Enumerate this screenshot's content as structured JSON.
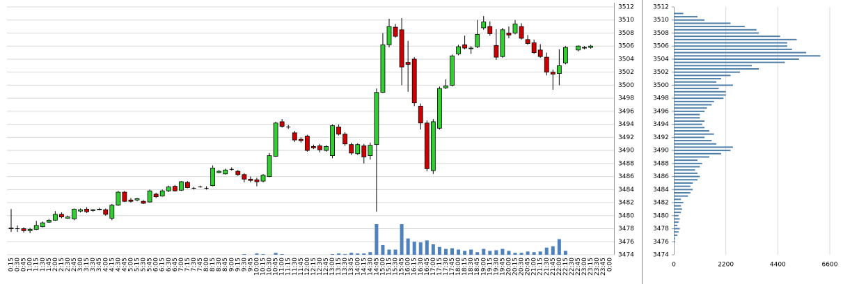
{
  "chart_data": [
    {
      "type": "candlestick",
      "categories": [
        "0:15",
        "0:30",
        "0:45",
        "1:00",
        "1:15",
        "1:30",
        "1:45",
        "2:00",
        "2:15",
        "2:30",
        "2:45",
        "3:00",
        "3:15",
        "3:30",
        "3:45",
        "4:00",
        "4:15",
        "4:30",
        "4:45",
        "5:00",
        "5:15",
        "5:30",
        "5:45",
        "6:00",
        "6:15",
        "6:30",
        "6:45",
        "7:00",
        "7:15",
        "7:30",
        "7:45",
        "8:00",
        "8:15",
        "8:30",
        "8:45",
        "9:00",
        "9:15",
        "9:30",
        "9:45",
        "10:00",
        "10:15",
        "10:30",
        "10:45",
        "11:00",
        "11:15",
        "11:30",
        "11:45",
        "12:00",
        "12:15",
        "12:30",
        "12:45",
        "13:00",
        "13:15",
        "13:30",
        "13:45",
        "14:00",
        "14:15",
        "14:30",
        "14:45",
        "15:00",
        "15:15",
        "15:30",
        "15:45",
        "16:00",
        "16:15",
        "16:30",
        "16:45",
        "17:00",
        "17:15",
        "17:30",
        "17:45",
        "18:00",
        "18:15",
        "18:30",
        "18:45",
        "19:00",
        "19:15",
        "19:30",
        "19:45",
        "20:00",
        "20:15",
        "20:30",
        "20:45",
        "21:00",
        "21:15",
        "21:30",
        "21:45",
        "22:00",
        "22:15",
        "22:30",
        "22:45",
        "23:00",
        "23:15",
        "23:30",
        "23:45",
        "0:00"
      ],
      "open": [
        3478,
        3478,
        3478,
        3477.7,
        3477.9,
        3478.3,
        3479,
        3479.3,
        3480.2,
        3479.6,
        3479.5,
        3480.7,
        3481,
        3480.8,
        3480.9,
        3480.9,
        3479.6,
        3481.6,
        3483.6,
        3482.4,
        3482.4,
        3482.2,
        3482.1,
        3483.3,
        3483,
        3483.8,
        3484.5,
        3483.9,
        3485.1,
        3484.2,
        3484.4,
        3484.2,
        3484.6,
        3486.6,
        3486.4,
        3487.1,
        3486.8,
        3486.3,
        3485.6,
        3485.5,
        3485.3,
        3486,
        3489.1,
        3494.4,
        3493.6,
        3492.7,
        3491.7,
        3492.2,
        3490.6,
        3490.7,
        3490,
        3489.2,
        3493.6,
        3492.5,
        3490.9,
        3489.5,
        3490.7,
        3489.2,
        3490.9,
        3498.9,
        3506.2,
        3508.9,
        3508.5,
        3503.5,
        3504,
        3496.8,
        3494.2,
        3486.9,
        3493.4,
        3499.6,
        3500,
        3504.8,
        3506.2,
        3505.6,
        3505.9,
        3508.8,
        3509,
        3506.1,
        3504.4,
        3508,
        3508,
        3509,
        3507,
        3506.5,
        3505.4,
        3504.3,
        3502,
        3501.8,
        3503.4,
        null,
        3505.4,
        3505.7,
        3505.8,
        null,
        null,
        null
      ],
      "high": [
        3481,
        3478.5,
        3478.2,
        3478.1,
        3479.2,
        3479.1,
        3479.5,
        3480.7,
        3480.5,
        3480,
        3481.1,
        3481.1,
        3481.3,
        3481,
        3481.2,
        3481.1,
        3481.8,
        3483.8,
        3483.8,
        3482.7,
        3482.7,
        3482.4,
        3484,
        3483.5,
        3484,
        3484.6,
        3484.7,
        3485.3,
        3485.3,
        3484.4,
        3484.6,
        3484.5,
        3487.7,
        3487,
        3487.2,
        3487.4,
        3487,
        3486.5,
        3486,
        3485.8,
        3486.4,
        3489.6,
        3494.4,
        3494.8,
        3493.9,
        3493,
        3492,
        3492.4,
        3490.9,
        3491,
        3490.8,
        3494,
        3494,
        3492.8,
        3491.2,
        3491.1,
        3491,
        3491.2,
        3499.5,
        3508,
        3510.2,
        3509.4,
        3510.3,
        3506.8,
        3504.3,
        3497.2,
        3494.6,
        3494.8,
        3499.8,
        3500.9,
        3504.7,
        3506.2,
        3507.6,
        3506,
        3510,
        3510.6,
        3509.8,
        3508.6,
        3508.8,
        3509,
        3510,
        3509.5,
        3507.7,
        3507,
        3506.3,
        3505,
        3502.4,
        3505.5,
        3506,
        null,
        3506.1,
        3506,
        3506.2,
        null,
        null,
        null
      ],
      "low": [
        3477.5,
        3477.5,
        3477.4,
        3477.3,
        3477.8,
        3478.2,
        3478.9,
        3479.2,
        3479.6,
        3479.5,
        3479.3,
        3480.5,
        3480.4,
        3480.6,
        3480.8,
        3480,
        3479.3,
        3481.5,
        3482.1,
        3482,
        3482.2,
        3481.8,
        3482,
        3482.7,
        3482.9,
        3483.6,
        3483.7,
        3483.8,
        3484.2,
        3484,
        3484.3,
        3484,
        3484.5,
        3486.5,
        3486.3,
        3486.9,
        3486.1,
        3485.1,
        3485.1,
        3484.5,
        3485.1,
        3485.9,
        3489,
        3493.5,
        3493.3,
        3491.3,
        3491.2,
        3489.8,
        3490.2,
        3489.7,
        3489.8,
        3488.8,
        3492.3,
        3490.7,
        3489.3,
        3489.3,
        3488,
        3488.6,
        3480.6,
        3498.8,
        3505.8,
        3507.3,
        3500,
        3499,
        3496.8,
        3493.2,
        3486.8,
        3486.4,
        3493.2,
        3499.4,
        3499.8,
        3504.6,
        3505.5,
        3504.8,
        3505.7,
        3508.5,
        3507.6,
        3503.9,
        3504.2,
        3507.2,
        3507.8,
        3507,
        3506.2,
        3504.8,
        3504.2,
        3501.5,
        3499.3,
        3500,
        3503.2,
        null,
        3505.2,
        3505.5,
        3505.6,
        null,
        null,
        null
      ],
      "close": [
        3478.1,
        3478,
        3477.7,
        3477.9,
        3478.5,
        3478.9,
        3479.3,
        3480.2,
        3479.8,
        3479.8,
        3481,
        3480.9,
        3480.6,
        3480.9,
        3481,
        3480.2,
        3481.6,
        3483.6,
        3482.2,
        3482.2,
        3482.6,
        3481.9,
        3483.8,
        3482.9,
        3483.8,
        3484.4,
        3483.8,
        3485.2,
        3484.3,
        3484.2,
        3484.4,
        3484.2,
        3487.3,
        3486.8,
        3487,
        3487.1,
        3486.3,
        3485.6,
        3485.4,
        3485.2,
        3486.2,
        3489.2,
        3494.2,
        3493.7,
        3493.6,
        3491.6,
        3491.5,
        3490,
        3490.4,
        3490.1,
        3490.6,
        3493.8,
        3492.5,
        3491,
        3489.6,
        3490.9,
        3489,
        3490.8,
        3498.9,
        3506.2,
        3509,
        3507.5,
        3502.8,
        3503.2,
        3497.3,
        3494.2,
        3487.2,
        3494.4,
        3499.5,
        3499.9,
        3504.5,
        3505.9,
        3505.7,
        3505.7,
        3507.8,
        3509.7,
        3507.9,
        3504.3,
        3508.5,
        3507.7,
        3509.4,
        3507.2,
        3506.4,
        3505,
        3504.4,
        3502,
        3501.7,
        3503,
        3505.8,
        null,
        3506,
        3505.8,
        3506,
        null,
        null,
        null
      ],
      "volume": [
        0,
        0,
        0,
        0,
        0,
        0,
        0,
        0,
        0,
        0,
        0,
        0,
        0,
        0,
        0,
        0,
        0,
        0,
        0,
        0,
        0,
        0,
        0,
        0,
        0,
        0,
        0,
        0,
        0,
        0,
        0,
        0,
        0,
        0,
        0,
        0,
        0,
        0.1,
        0,
        0.2,
        0.1,
        0,
        0.3,
        0.1,
        0,
        0,
        0,
        0,
        0,
        0,
        0,
        0.1,
        0.2,
        0.1,
        0.3,
        0.2,
        0.2,
        0.4,
        4.7,
        1.5,
        0.8,
        0.8,
        4.7,
        2.5,
        2,
        1.9,
        2.2,
        1.6,
        1.2,
        0.9,
        1,
        0.8,
        0.6,
        0.8,
        0.4,
        0.9,
        0.6,
        0.7,
        0.9,
        0.6,
        0.3,
        0.3,
        0.5,
        0.4,
        0.5,
        1.1,
        1.3,
        2.4,
        0.6,
        null,
        0,
        0,
        0,
        null,
        null,
        null
      ],
      "up_color": "#33cc33",
      "down_color": "#cc0000",
      "volume_color": "#4f81bd",
      "ylim": [
        3474,
        3512
      ],
      "yticks": [
        3474,
        3476,
        3478,
        3480,
        3482,
        3484,
        3486,
        3488,
        3490,
        3492,
        3494,
        3496,
        3498,
        3500,
        3502,
        3504,
        3506,
        3508,
        3510,
        3512
      ],
      "grid": true
    },
    {
      "type": "profile",
      "levels": [
        3511,
        3510.5,
        3510,
        3509.5,
        3509,
        3508.5,
        3508,
        3507.5,
        3507,
        3506.5,
        3506,
        3505.5,
        3505,
        3504.5,
        3504,
        3503.5,
        3503,
        3502.5,
        3502,
        3501.5,
        3501,
        3500.5,
        3500,
        3499.5,
        3499,
        3498.5,
        3498,
        3497.5,
        3497,
        3496.5,
        3496,
        3495.5,
        3495,
        3494.5,
        3494,
        3493.5,
        3493,
        3492.5,
        3492,
        3491.5,
        3491,
        3490.5,
        3490,
        3489.5,
        3489,
        3488.5,
        3488,
        3487.5,
        3487,
        3486.5,
        3486,
        3485.5,
        3485,
        3484.5,
        3484,
        3483.5,
        3483,
        3482.5,
        3482,
        3481.5,
        3481,
        3480.5,
        3480,
        3479.5,
        3479,
        3478.5,
        3478,
        3477.5,
        3477,
        3476.5,
        3476
      ],
      "values": [
        400,
        1000,
        1300,
        2400,
        3000,
        3500,
        3600,
        4500,
        5200,
        4800,
        4800,
        5000,
        5600,
        6200,
        5300,
        4700,
        3300,
        3600,
        2800,
        2400,
        2000,
        1800,
        2500,
        1900,
        2200,
        2200,
        2100,
        1700,
        1600,
        1400,
        1300,
        1100,
        1100,
        1300,
        1200,
        1300,
        1500,
        1700,
        1300,
        1600,
        1800,
        2500,
        2400,
        2000,
        1500,
        1000,
        1200,
        1100,
        900,
        1000,
        1100,
        1000,
        800,
        700,
        800,
        700,
        600,
        300,
        400,
        300,
        350,
        300,
        200,
        250,
        200,
        150,
        250,
        200,
        150,
        50,
        50
      ],
      "color": "#4f7fa8",
      "xlim": [
        0,
        6600
      ],
      "xticks": [
        0,
        2200,
        4400,
        6600
      ],
      "ylim": [
        3474,
        3512
      ],
      "yticks": [
        3474,
        3476,
        3478,
        3480,
        3482,
        3484,
        3486,
        3488,
        3490,
        3492,
        3494,
        3496,
        3498,
        3500,
        3502,
        3504,
        3506,
        3508,
        3510,
        3512
      ],
      "grid": true
    }
  ]
}
